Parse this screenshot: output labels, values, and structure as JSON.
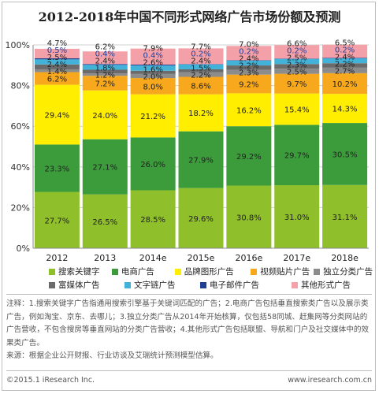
{
  "title": "2012-2018年中国不同形式网络广告市场份额及预测",
  "chart_data": {
    "type": "bar",
    "stacked": true,
    "categories": [
      "2012",
      "2013",
      "2014e",
      "2015e",
      "2016e",
      "2017e",
      "2018e"
    ],
    "ylim": [
      0,
      100
    ],
    "yticks": [
      "0%",
      "20%",
      "40%",
      "60%",
      "80%",
      "100%"
    ],
    "grid": true,
    "legend_position": "bottom",
    "series": [
      {
        "name": "搜索关键字",
        "color": "#8fbf2a",
        "values": [
          27.7,
          26.5,
          28.5,
          29.6,
          30.8,
          31.0,
          31.1
        ]
      },
      {
        "name": "电商广告",
        "color": "#3c9c3c",
        "values": [
          23.3,
          27.1,
          26.0,
          27.9,
          29.2,
          29.7,
          30.5
        ]
      },
      {
        "name": "品牌图形广告",
        "color": "#ffee00",
        "values": [
          29.4,
          24.0,
          21.2,
          18.2,
          16.2,
          15.4,
          14.3
        ]
      },
      {
        "name": "视频贴片广告",
        "color": "#f8a81c",
        "values": [
          6.2,
          7.2,
          8.0,
          8.6,
          9.2,
          9.7,
          10.2
        ]
      },
      {
        "name": "独立分类广告",
        "color": "#8c8c8c",
        "values": [
          1.4,
          1.2,
          2.0,
          2.2,
          2.3,
          2.5,
          2.7
        ]
      },
      {
        "name": "富媒体广告",
        "color": "#6b6b6b",
        "values": [
          2.4,
          1.8,
          1.6,
          1.5,
          2.2,
          2.3,
          2.2
        ]
      },
      {
        "name": "文字链广告",
        "color": "#43b2d8",
        "values": [
          2.5,
          2.4,
          2.6,
          2.4,
          2.4,
          2.5,
          2.4
        ]
      },
      {
        "name": "电子邮件广告",
        "color": "#1f3f94",
        "values": [
          0.5,
          0.4,
          0.4,
          0.2,
          0.2,
          0.2,
          0.2
        ]
      },
      {
        "name": "其他形式广告",
        "color": "#f4a0a8",
        "values": [
          4.7,
          6.2,
          7.9,
          7.7,
          7.0,
          6.6,
          6.5
        ]
      }
    ]
  },
  "note": "注释：1.搜索关键字广告指通用搜索引擎基于关键词匹配的广告；2.电商广告包括垂直搜索类广告以及展示类广告，例如淘宝、京东、去哪儿；3.独立分类广告从2014年开始核算，仅包括58同城、赶集网等分类网站的广告营收，不包含搜房等垂直网站的分类广告营收；4.其他形式广告包括联盟、导航和门户及社交媒体中的效果类广告。",
  "source": "来源：根据企业公开财报、行业访谈及艾瑞统计预测模型估算。",
  "copyright": "©2015.1 iResearch Inc.",
  "website": "www.iresearch.com.cn"
}
